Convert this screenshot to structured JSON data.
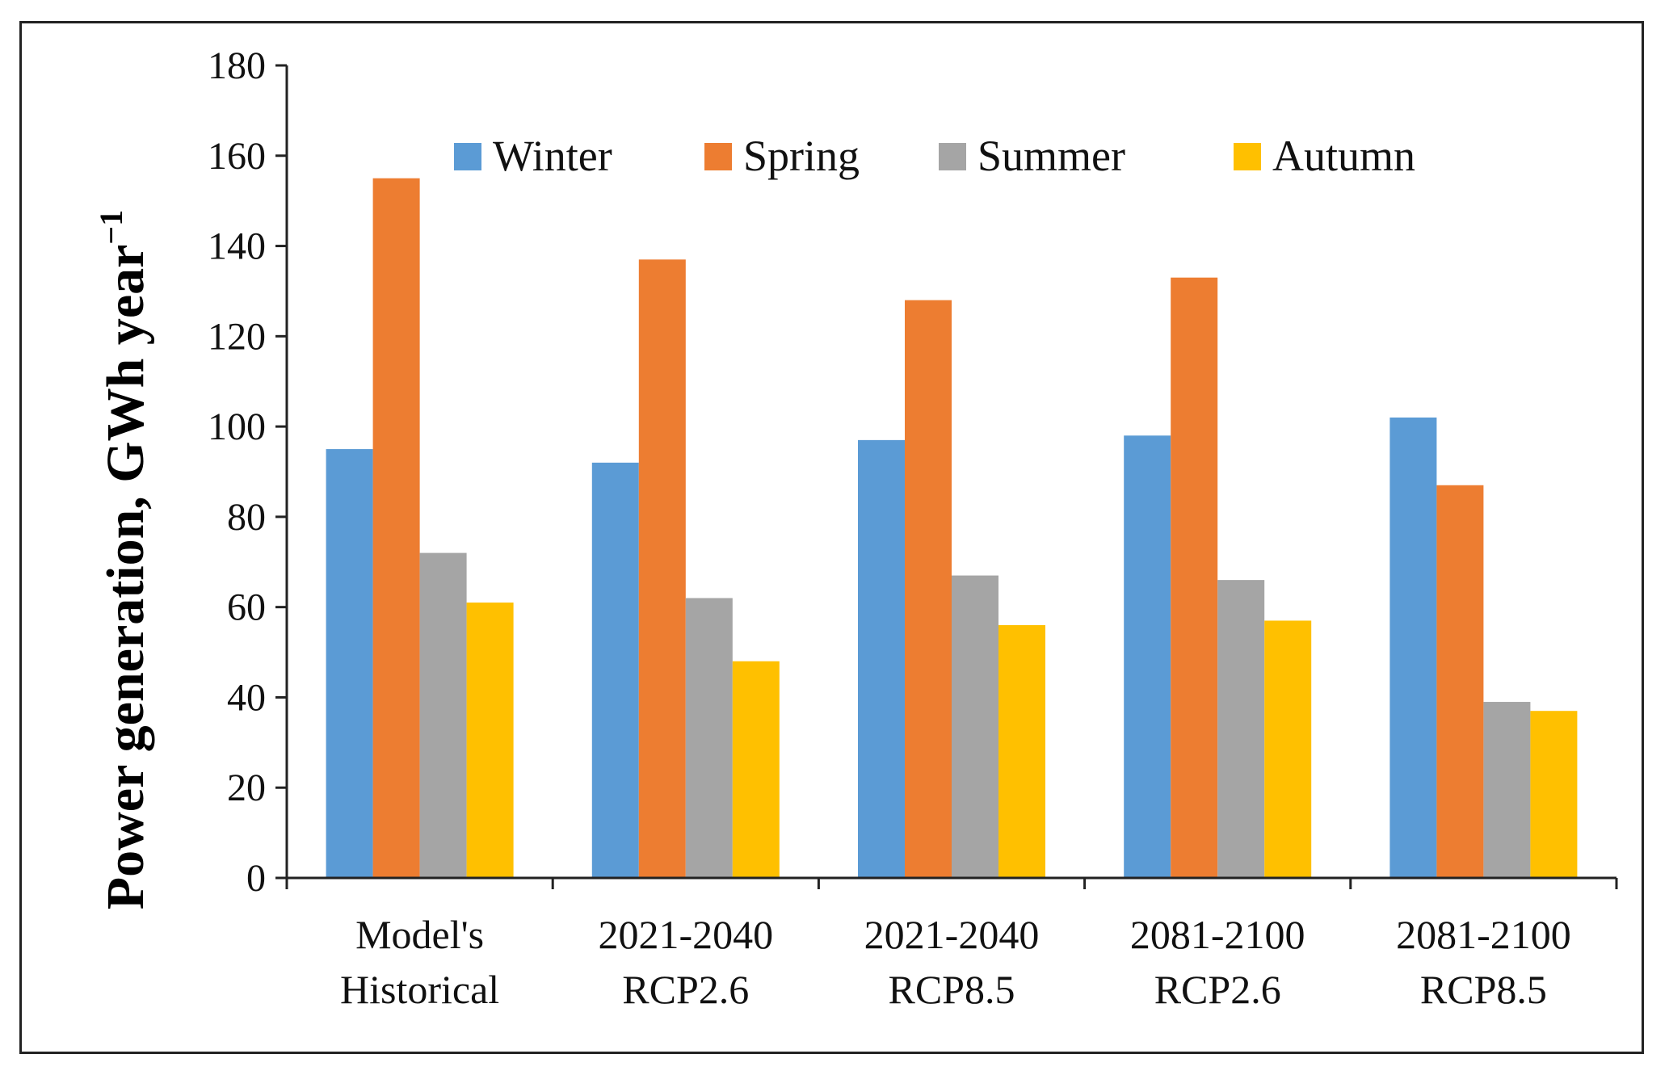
{
  "chart_data": {
    "type": "bar",
    "title": "",
    "xlabel": "",
    "ylabel": "Power generation, GWh year",
    "ylabel_superscript": "−1",
    "ylim": [
      0,
      180
    ],
    "yticks": [
      0,
      20,
      40,
      60,
      80,
      100,
      120,
      140,
      160,
      180
    ],
    "categories": [
      [
        "Model's",
        "Historical"
      ],
      [
        "2021-2040",
        "RCP2.6"
      ],
      [
        "2021-2040",
        "RCP8.5"
      ],
      [
        "2081-2100",
        "RCP2.6"
      ],
      [
        "2081-2100",
        "RCP8.5"
      ]
    ],
    "series": [
      {
        "name": "Winter",
        "color": "#5B9BD5",
        "values": [
          95,
          92,
          97,
          98,
          102
        ]
      },
      {
        "name": "Spring",
        "color": "#ED7D31",
        "values": [
          155,
          137,
          128,
          133,
          87
        ]
      },
      {
        "name": "Summer",
        "color": "#A5A5A5",
        "values": [
          72,
          62,
          67,
          66,
          39
        ]
      },
      {
        "name": "Autumn",
        "color": "#FFC000",
        "values": [
          61,
          48,
          56,
          57,
          37
        ]
      }
    ],
    "legend_position": "top",
    "grid": false
  }
}
